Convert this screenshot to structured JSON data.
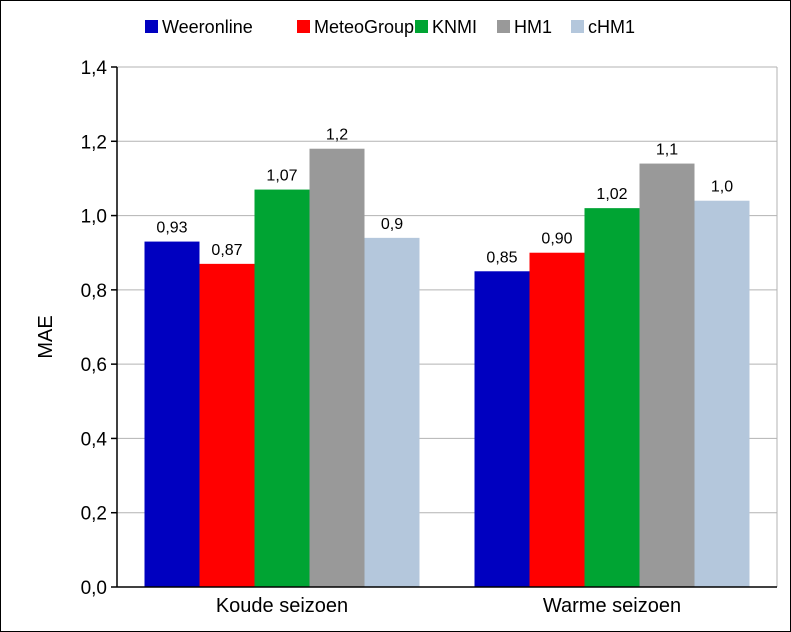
{
  "chart_data": {
    "type": "bar",
    "ylabel": "MAE",
    "ylim": [
      0,
      1.4
    ],
    "yticks": [
      "0,0",
      "0,2",
      "0,4",
      "0,6",
      "0,8",
      "1,0",
      "1,2",
      "1,4"
    ],
    "categories": [
      "Koude seizoen",
      "Warme seizoen"
    ],
    "legend_position": "top",
    "grid": true,
    "series": [
      {
        "name": "Weeronline",
        "color": "#0000c0",
        "values": [
          0.93,
          0.85
        ],
        "labels": [
          "0,93",
          "0,85"
        ]
      },
      {
        "name": "MeteoGroup",
        "color": "#ff0000",
        "values": [
          0.87,
          0.9
        ],
        "labels": [
          "0,87",
          "0,90"
        ]
      },
      {
        "name": "KNMI",
        "color": "#00a433",
        "values": [
          1.07,
          1.02
        ],
        "labels": [
          "1,07",
          "1,02"
        ]
      },
      {
        "name": "HM1",
        "color": "#999999",
        "values": [
          1.18,
          1.14
        ],
        "labels": [
          "1,2",
          "1,1"
        ]
      },
      {
        "name": "cHM1",
        "color": "#b4c7dc",
        "values": [
          0.94,
          1.04
        ],
        "labels": [
          "0,9",
          "1,0"
        ]
      }
    ]
  }
}
